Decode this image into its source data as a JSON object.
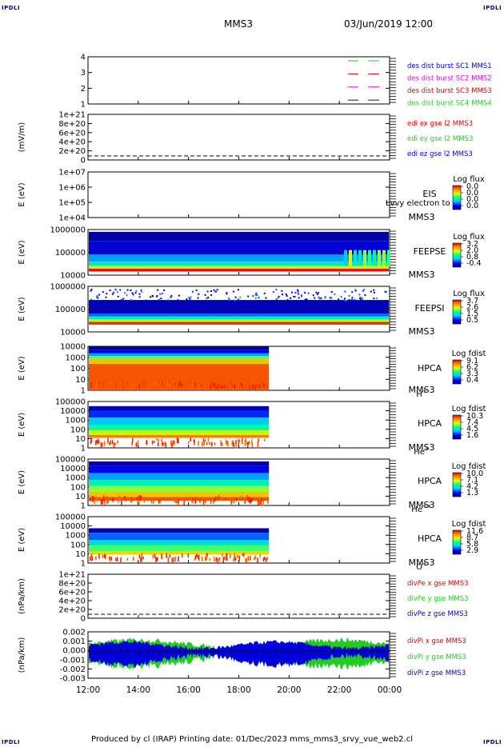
{
  "corner_label": "IPDLI",
  "header": {
    "spacecraft": "MMS3",
    "datetime": "03/Jun/2019 12:00"
  },
  "footer": "Produced by cl (IRAP)   Printing date: 01/Dec/2023   mms_mms3_srvy_vue_web2.cl",
  "colors": {
    "red": "#dd0000",
    "green": "#22cc22",
    "blue": "#0000cc",
    "magenta": "#dd00dd"
  },
  "chart_data": [
    {
      "type": "line",
      "panel": "burst",
      "yticks": [
        "4",
        "3",
        "2",
        "1"
      ],
      "legend": [
        {
          "text": "des dist burst SC1 MMS1",
          "color": "#0000cc"
        },
        {
          "text": "des dist burst SC2 MMS2",
          "color": "#dd00dd"
        },
        {
          "text": "des dist burst SC3 MMS3",
          "color": "#dd0000"
        },
        {
          "text": "des dist burst SC4 MMS4",
          "color": "#22cc22"
        }
      ],
      "series": [
        {
          "y": 4,
          "color": "#22cc22",
          "x": [
            "22:25-22:35",
            "23:20-23:35"
          ]
        },
        {
          "y": 3,
          "color": "#dd0000",
          "x": [
            "22:25-22:35",
            "23:20-23:35"
          ]
        },
        {
          "y": 2,
          "color": "#dd00dd",
          "x": [
            "22:25-22:35",
            "23:20-23:35"
          ]
        },
        {
          "y": 1,
          "color": "#0000cc",
          "x": [
            "22:25-22:35",
            "23:20-23:35"
          ]
        }
      ]
    },
    {
      "type": "line",
      "panel": "edi",
      "ylabel": "(mV/m)",
      "yticks": [
        "1e+21",
        "8e+20",
        "6e+20",
        "4e+20",
        "2e+20",
        "0"
      ],
      "legend": [
        {
          "text": "edi ex gse l2 MMS3",
          "color": "#dd0000"
        },
        {
          "text": "edi ey gse l2 MMS3",
          "color": "#22cc22"
        },
        {
          "text": "edi ez gse l2 MMS3",
          "color": "#0000cc"
        }
      ]
    },
    {
      "type": "heatmap",
      "panel": "eis",
      "ylabel": "E (eV)",
      "yticks": [
        "1e+07",
        "1e+06",
        "1e+05",
        "1e+04"
      ],
      "labels": [
        "EIS",
        "MMS3"
      ],
      "overlay_text": "Lvvy electron to",
      "cbar_title": "Log flux",
      "cbar_ticks": [
        "0.0",
        "0.0",
        "0.0",
        "0.0"
      ]
    },
    {
      "type": "heatmap",
      "panel": "feepse",
      "ylabel": "E (eV)",
      "yticks": [
        "1000000",
        "100000",
        "10000"
      ],
      "labels": [
        "FEEPSE",
        "MMS3"
      ],
      "cbar_title": "Log flux",
      "cbar_ticks": [
        "3.2",
        "2.0",
        "0.8",
        "-0.4"
      ]
    },
    {
      "type": "heatmap",
      "panel": "feepsi",
      "ylabel": "E (eV)",
      "yticks": [
        "1000000",
        "100000",
        "10000"
      ],
      "labels": [
        "FEEPSI",
        "MMS3"
      ],
      "cbar_title": "Log flux",
      "cbar_ticks": [
        "3.7",
        "2.6",
        "1.5",
        "0.5"
      ]
    },
    {
      "type": "heatmap",
      "panel": "hpca_h",
      "ylabel": "E (eV)",
      "yticks": [
        "10000",
        "1000",
        "100",
        "10",
        "1"
      ],
      "labels": [
        "HPCA",
        "MMS3"
      ],
      "species": "H",
      "species_sup": "+",
      "cbar_title": "Log fdist",
      "cbar_ticks": [
        "9.1",
        "6.2",
        "3.3",
        "0.4"
      ]
    },
    {
      "type": "heatmap",
      "panel": "hpca_he",
      "ylabel": "E (eV)",
      "yticks": [
        "100000",
        "10000",
        "1000",
        "100",
        "10",
        "1"
      ],
      "labels": [
        "HPCA",
        "MMS3"
      ],
      "species": "He",
      "species_sup": "+",
      "cbar_title": "Log fdist",
      "cbar_ticks": [
        "10.3",
        "7.4",
        "4.5",
        "1.6"
      ]
    },
    {
      "type": "heatmap",
      "panel": "hpca_hepp",
      "ylabel": "E (eV)",
      "yticks": [
        "100000",
        "10000",
        "1000",
        "100",
        "10",
        "1"
      ],
      "labels": [
        "HPCA",
        "MMS3"
      ],
      "species": "He",
      "species_sup": "++",
      "cbar_title": "Log fdist",
      "cbar_ticks": [
        "10.0",
        "7.1",
        "4.2",
        "1.3"
      ]
    },
    {
      "type": "heatmap",
      "panel": "hpca_o",
      "ylabel": "E (eV)",
      "yticks": [
        "100000",
        "10000",
        "1000",
        "100",
        "10",
        "1"
      ],
      "labels": [
        "HPCA",
        "MMS3"
      ],
      "species": "O",
      "species_sup": "+",
      "cbar_title": "Log fdist",
      "cbar_ticks": [
        "11.6",
        "8.7",
        "5.8",
        "2.9"
      ]
    },
    {
      "type": "line",
      "panel": "divpe",
      "ylabel": "(nPa/km)",
      "yticks": [
        "1e+21",
        "8e+20",
        "6e+20",
        "4e+20",
        "2e+20",
        "0"
      ],
      "legend": [
        {
          "text": "divPe x gse MMS3",
          "color": "#dd0000"
        },
        {
          "text": "divPe y gse MMS3",
          "color": "#22cc22"
        },
        {
          "text": "divPe z gse MMS3",
          "color": "#0000cc"
        }
      ]
    },
    {
      "type": "line",
      "panel": "divpi",
      "ylabel": "(nPa/km)",
      "yticks": [
        "0.002",
        "0.001",
        "0.000",
        "-0.001",
        "-0.002",
        "-0.003"
      ],
      "ylim": [
        -0.0035,
        0.0025
      ],
      "legend": [
        {
          "text": "divPi x gse MMS3",
          "color": "#dd0000"
        },
        {
          "text": "divPi y gse MMS3",
          "color": "#22cc22"
        },
        {
          "text": "divPi z gse MMS3",
          "color": "#0000cc"
        }
      ]
    }
  ],
  "xaxis": {
    "ticks": [
      "12:00",
      "14:00",
      "16:00",
      "18:00",
      "20:00",
      "22:00",
      "00:00"
    ]
  }
}
